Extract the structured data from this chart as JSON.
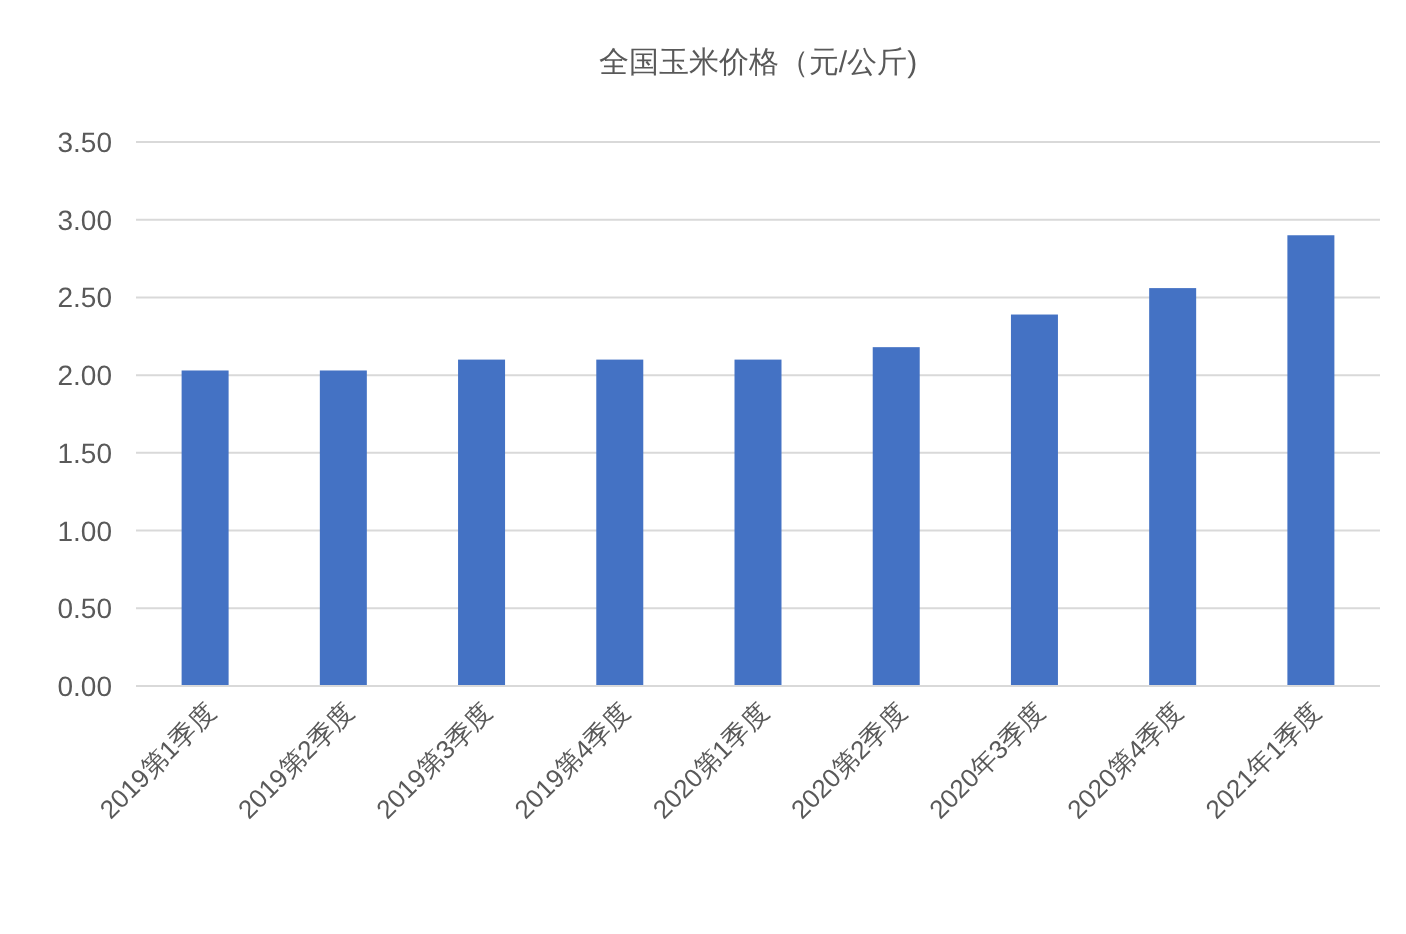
{
  "chart_data": {
    "type": "bar",
    "title": "全国玉米价格（元/公斤)",
    "categories": [
      "2019第1季度",
      "2019第2季度",
      "2019第3季度",
      "2019第4季度",
      "2020第1季度",
      "2020第2季度",
      "2020年3季度",
      "2020第4季度",
      "2021年1季度"
    ],
    "values": [
      2.03,
      2.03,
      2.1,
      2.1,
      2.1,
      2.18,
      2.39,
      2.56,
      2.9
    ],
    "color": "#4472c4",
    "ylim": [
      0,
      3.5
    ],
    "yticks": [
      {
        "value": 0,
        "label": "0.00"
      },
      {
        "value": 0.5,
        "label": "0.50"
      },
      {
        "value": 1,
        "label": "1.00"
      },
      {
        "value": 1.5,
        "label": "1.50"
      },
      {
        "value": 2,
        "label": "2.00"
      },
      {
        "value": 2.5,
        "label": "2.50"
      },
      {
        "value": 3,
        "label": "3.00"
      },
      {
        "value": 3.5,
        "label": "3.50"
      }
    ],
    "grid": "y"
  }
}
